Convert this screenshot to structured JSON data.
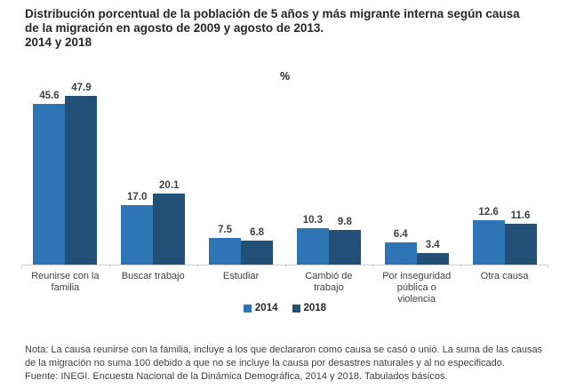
{
  "header": {
    "title_lines": [
      "Distribución porcentual de la población de 5 años y más migrante interna según causa",
      "de la migración en agosto de 2009 y agosto de 2013.",
      "2014 y 2018"
    ]
  },
  "chart_data": {
    "type": "bar",
    "title": "Distribución porcentual de la población de 5 años y más migrante interna según causa de la migración en agosto de 2009 y agosto de 2013. 2014 y 2018",
    "unit_label": "%",
    "categories": [
      "Reunirse con la familia",
      "Buscar trabajo",
      "Estudiar",
      "Cambió de trabajo",
      "Por inseguridad pública o violencia",
      "Otra causa"
    ],
    "series": [
      {
        "name": "2014",
        "color": "#2E75B6",
        "values": [
          45.6,
          17.0,
          7.5,
          10.3,
          6.4,
          12.6
        ]
      },
      {
        "name": "2018",
        "color": "#235077",
        "values": [
          47.9,
          20.1,
          6.8,
          9.8,
          3.4,
          11.6
        ]
      }
    ],
    "ylim": [
      0,
      50
    ],
    "grid": false,
    "legend_position": "bottom",
    "value_labels": true,
    "axis_color": "#D0CECE"
  },
  "footer": {
    "note_lines": [
      "Nota: La causa reunirse con la familia, incluye a los que declararon como causa se casó o unió. La suma de las causas",
      "de la migración no suma 100 debido a que no se incluye la causa por desastres naturales y al no especificado.",
      "Fuente: INEGI. Encuesta Nacional de la Dinámica Demográfica, 2014 y 2018. Tabulados básicos."
    ]
  }
}
